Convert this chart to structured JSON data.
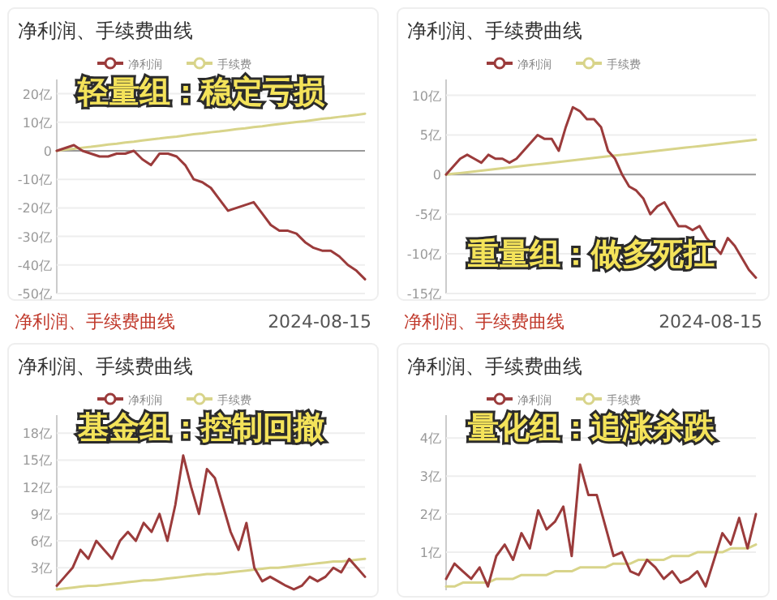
{
  "chart_data": [
    {
      "type": "line",
      "title": "净利润、手续费曲线",
      "legend": "top",
      "grid": "y",
      "ylim": [
        -50,
        25
      ],
      "yticks": [
        {
          "value": 20,
          "label": "20亿"
        },
        {
          "value": 10,
          "label": "10亿"
        },
        0,
        {
          "value": -10,
          "label": "-10亿"
        },
        {
          "value": -20,
          "label": "-20亿"
        },
        {
          "value": -30,
          "label": "-30亿"
        },
        {
          "value": -40,
          "label": "-40亿"
        },
        {
          "value": -50,
          "label": "-50亿"
        }
      ],
      "categories": [
        null,
        null,
        null,
        null,
        null,
        null,
        null,
        null,
        null,
        null,
        null,
        null,
        null,
        null,
        null,
        null,
        null,
        null,
        null,
        null,
        null,
        null,
        null,
        null,
        null,
        null,
        null,
        null,
        null,
        null,
        null,
        null,
        null,
        null,
        null,
        null,
        null
      ],
      "series": [
        {
          "name": "净利润",
          "color": "#9b3b3b",
          "values": [
            0,
            1,
            2,
            0,
            -1,
            -2,
            -2,
            -1,
            -1,
            0,
            -3,
            -5,
            -1,
            -1,
            -2,
            -5,
            -10,
            -11,
            -13,
            -17,
            -21,
            -20,
            -19,
            -18,
            -22,
            -26,
            -28,
            -28,
            -29,
            -32,
            -34,
            -35,
            -35,
            -37,
            -40,
            -42,
            -45
          ]
        },
        {
          "name": "手续费",
          "color": "#d8d48a",
          "values": [
            0,
            0.4,
            0.7,
            1.1,
            1.4,
            1.8,
            2.2,
            2.5,
            2.9,
            3.2,
            3.6,
            4,
            4.3,
            4.7,
            5,
            5.4,
            5.8,
            6.1,
            6.5,
            6.8,
            7.2,
            7.6,
            7.9,
            8.3,
            8.6,
            9,
            9.4,
            9.7,
            10.1,
            10.4,
            10.8,
            11.2,
            11.5,
            11.9,
            12.2,
            12.6,
            13
          ]
        }
      ],
      "annotations": [
        "轻量组：稳定亏损"
      ]
    },
    {
      "type": "line",
      "title": "净利润、手续费曲线",
      "legend": "top",
      "grid": "y",
      "ylim": [
        -15,
        12
      ],
      "yticks": [
        {
          "value": 10,
          "label": "10亿"
        },
        {
          "value": 5,
          "label": "5亿"
        },
        0,
        {
          "value": -5,
          "label": "-5亿"
        },
        {
          "value": -10,
          "label": "-10亿"
        },
        {
          "value": -15,
          "label": "-15亿"
        }
      ],
      "categories": [
        null,
        null,
        null,
        null,
        null,
        null,
        null,
        null,
        null,
        null,
        null,
        null,
        null,
        null,
        null,
        null,
        null,
        null,
        null,
        null,
        null,
        null,
        null,
        null,
        null,
        null,
        null,
        null,
        null,
        null,
        null,
        null,
        null,
        null,
        null,
        null,
        null,
        null,
        null,
        null,
        null,
        null,
        null,
        null,
        null
      ],
      "series": [
        {
          "name": "净利润",
          "color": "#9b3b3b",
          "values": [
            0,
            1,
            2,
            2.5,
            2,
            1.5,
            2.5,
            2,
            2,
            1.5,
            2,
            3,
            4,
            5,
            4.5,
            4.5,
            3,
            6,
            8.5,
            8,
            7,
            7,
            6,
            3,
            2,
            0,
            -1.5,
            -2,
            -3,
            -5,
            -4,
            -3.5,
            -5,
            -6.5,
            -6.5,
            -7,
            -6.5,
            -8,
            -9,
            -10,
            -8,
            -9,
            -10.5,
            -12,
            -13
          ]
        },
        {
          "name": "手续费",
          "color": "#d8d48a",
          "values": [
            0,
            0.1,
            0.2,
            0.3,
            0.4,
            0.5,
            0.6,
            0.7,
            0.8,
            0.9,
            1,
            1.1,
            1.2,
            1.3,
            1.4,
            1.5,
            1.6,
            1.7,
            1.8,
            1.9,
            2,
            2.1,
            2.2,
            2.3,
            2.4,
            2.5,
            2.6,
            2.7,
            2.8,
            2.9,
            3,
            3.1,
            3.2,
            3.3,
            3.4,
            3.5,
            3.6,
            3.7,
            3.8,
            3.9,
            4,
            4.1,
            4.2,
            4.3,
            4.4
          ]
        }
      ],
      "annotations": [
        "重量组：做多死扛"
      ]
    },
    {
      "type": "line",
      "title": "净利润、手续费曲线",
      "legend": "top",
      "grid": "y",
      "ylim": [
        0.5,
        20
      ],
      "yticks": [
        {
          "value": 18,
          "label": "18亿"
        },
        {
          "value": 15,
          "label": "15亿"
        },
        {
          "value": 12,
          "label": "12亿"
        },
        {
          "value": 9,
          "label": "9亿"
        },
        {
          "value": 6,
          "label": "6亿"
        },
        {
          "value": 3,
          "label": "3亿"
        }
      ],
      "categories": [
        null,
        null,
        null,
        null,
        null,
        null,
        null,
        null,
        null,
        null,
        null,
        null,
        null,
        null,
        null,
        null,
        null,
        null,
        null,
        null,
        null,
        null,
        null,
        null,
        null,
        null,
        null,
        null,
        null,
        null,
        null,
        null,
        null,
        null,
        null,
        null,
        null,
        null,
        null,
        null
      ],
      "series": [
        {
          "name": "净利润",
          "color": "#9b3b3b",
          "values": [
            1,
            2,
            3,
            5,
            4,
            6,
            5,
            4,
            6,
            7,
            6,
            8,
            7,
            9,
            6,
            10,
            15.5,
            12,
            9,
            14,
            13,
            10,
            7,
            5,
            8,
            3,
            1.5,
            2,
            1.5,
            1,
            0.6,
            1,
            2,
            1.5,
            2,
            3,
            2.5,
            4,
            3,
            2
          ]
        },
        {
          "name": "手续费",
          "color": "#d8d48a",
          "values": [
            0.6,
            0.7,
            0.8,
            0.9,
            1,
            1,
            1.1,
            1.2,
            1.3,
            1.4,
            1.5,
            1.6,
            1.6,
            1.7,
            1.8,
            1.9,
            2,
            2.1,
            2.2,
            2.3,
            2.3,
            2.4,
            2.5,
            2.6,
            2.7,
            2.8,
            2.9,
            3,
            3,
            3.1,
            3.2,
            3.3,
            3.4,
            3.5,
            3.6,
            3.7,
            3.7,
            3.8,
            3.9,
            4
          ]
        }
      ],
      "annotations": [
        "净利润、手续费曲线",
        "2024-08-15",
        "基金组：控制回撤"
      ]
    },
    {
      "type": "line",
      "title": "净利润、手续费曲线",
      "legend": "top",
      "grid": "y",
      "ylim": [
        0,
        4.6
      ],
      "yticks": [
        {
          "value": 4,
          "label": "4亿"
        },
        {
          "value": 3,
          "label": "3亿"
        },
        {
          "value": 2,
          "label": "2亿"
        },
        {
          "value": 1,
          "label": "1亿"
        }
      ],
      "categories": [
        null,
        null,
        null,
        null,
        null,
        null,
        null,
        null,
        null,
        null,
        null,
        null,
        null,
        null,
        null,
        null,
        null,
        null,
        null,
        null,
        null,
        null,
        null,
        null,
        null,
        null,
        null,
        null,
        null,
        null,
        null,
        null,
        null,
        null,
        null,
        null,
        null,
        null
      ],
      "series": [
        {
          "name": "净利润",
          "color": "#9b3b3b",
          "values": [
            0.3,
            0.7,
            0.5,
            0.3,
            0.6,
            0.1,
            0.9,
            1.2,
            0.8,
            1.5,
            1.1,
            2.1,
            1.6,
            1.8,
            2.2,
            0.9,
            3.3,
            2.5,
            2.5,
            1.7,
            0.9,
            1,
            0.5,
            0.4,
            0.8,
            0.6,
            0.3,
            0.5,
            0.2,
            0.3,
            0.5,
            0.1,
            0.8,
            1.5,
            1.2,
            1.9,
            1.1,
            2
          ]
        },
        {
          "name": "手续费",
          "color": "#d8d48a",
          "values": [
            0.1,
            0.1,
            0.2,
            0.2,
            0.2,
            0.2,
            0.3,
            0.3,
            0.3,
            0.4,
            0.4,
            0.4,
            0.4,
            0.5,
            0.5,
            0.5,
            0.6,
            0.6,
            0.6,
            0.6,
            0.7,
            0.7,
            0.7,
            0.8,
            0.8,
            0.8,
            0.8,
            0.9,
            0.9,
            0.9,
            1,
            1,
            1,
            1,
            1.1,
            1.1,
            1.1,
            1.2
          ]
        }
      ],
      "annotations": [
        "净利润、手续费曲线",
        "2024-08-15",
        "量化组：追涨杀跌"
      ]
    }
  ]
}
